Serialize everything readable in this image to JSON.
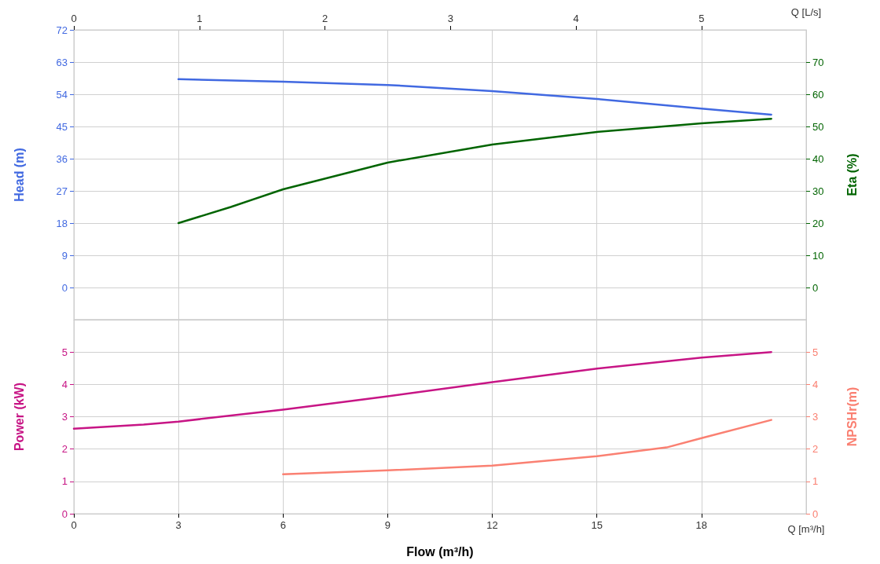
{
  "chart_data": [
    {
      "type": "line",
      "ylabel": "Head (m)",
      "y2label": "Eta (%)",
      "x2label": "Q [L/s]",
      "xlim": [
        0,
        21
      ],
      "xticks": [
        0,
        3,
        6,
        9,
        12,
        15,
        18
      ],
      "x2lim": [
        0,
        5.833
      ],
      "x2ticks": [
        0,
        1,
        2,
        3,
        4,
        5
      ],
      "ylim": [
        -9,
        72
      ],
      "yticks": [
        0,
        9,
        18,
        27,
        36,
        45,
        54,
        63,
        72
      ],
      "y2lim": [
        -10,
        80
      ],
      "y2ticks": [
        0,
        10,
        20,
        30,
        40,
        50,
        60,
        70
      ],
      "tick_labels": "y",
      "grid": true,
      "marker": "none",
      "line_style": "solid",
      "series": [
        {
          "color": "#4169e1",
          "x": [
            3,
            6,
            9,
            12,
            15,
            18,
            20
          ],
          "values": [
            58.2,
            57.5,
            56.6,
            54.9,
            52.7,
            50.0,
            48.3
          ]
        },
        {
          "color": "#006400",
          "axis": "y2",
          "x": [
            3,
            4.5,
            6,
            9,
            12,
            15,
            18,
            20
          ],
          "values": [
            20,
            25,
            30.5,
            38.8,
            44.4,
            48.3,
            51,
            52.4
          ]
        }
      ]
    },
    {
      "type": "line",
      "xlabel": "Flow (m³/h)",
      "ylabel": "Power (kW)",
      "y2label": "NPSHr(m)",
      "annotations": [
        "Q [m³/h]"
      ],
      "xlim": [
        0,
        21
      ],
      "xticks": [
        0,
        3,
        6,
        9,
        12,
        15,
        18
      ],
      "ylim": [
        0,
        6
      ],
      "yticks": [
        0,
        1,
        2,
        3,
        4,
        5
      ],
      "y2lim": [
        0,
        6
      ],
      "y2ticks": [
        0,
        1,
        2,
        3,
        4,
        5
      ],
      "grid": true,
      "marker": "none",
      "line_style": "solid",
      "series": [
        {
          "color": "#c71585",
          "x": [
            0,
            2,
            3,
            6,
            9,
            12,
            15,
            18,
            20
          ],
          "values": [
            2.63,
            2.76,
            2.85,
            3.22,
            3.63,
            4.07,
            4.49,
            4.83,
            5.0
          ]
        },
        {
          "color": "#fa8072",
          "axis": "y2",
          "x": [
            6,
            9,
            12,
            15,
            17,
            18,
            20
          ],
          "values": [
            1.22,
            1.34,
            1.49,
            1.78,
            2.05,
            2.34,
            2.9
          ]
        }
      ]
    }
  ]
}
